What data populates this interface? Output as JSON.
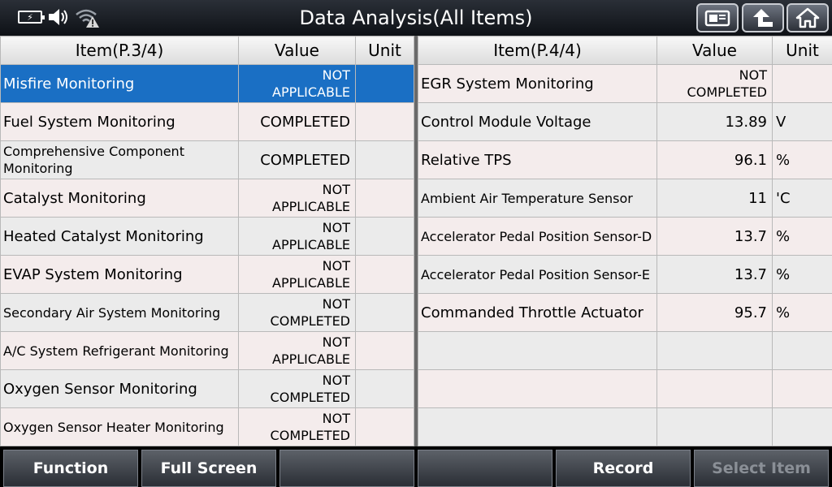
{
  "header": {
    "title": "Data Analysis(All Items)",
    "icons": [
      "battery-charging-icon",
      "volume-icon",
      "wifi-warning-icon",
      "screenshot-icon",
      "back-icon",
      "home-icon"
    ]
  },
  "left_table": {
    "headers": {
      "item": "Item(P.3/4)",
      "value": "Value",
      "unit": "Unit"
    },
    "rows": [
      {
        "item": "Misfire Monitoring",
        "value1": "NOT",
        "value2": "APPLICABLE",
        "unit": ""
      },
      {
        "item": "Fuel System Monitoring",
        "value1": "COMPLETED",
        "value2": "",
        "unit": ""
      },
      {
        "item1": "Comprehensive Component",
        "item2": "Monitoring",
        "value1": "COMPLETED",
        "value2": "",
        "unit": ""
      },
      {
        "item": "Catalyst Monitoring",
        "value1": "NOT",
        "value2": "APPLICABLE",
        "unit": ""
      },
      {
        "item": "Heated Catalyst Monitoring",
        "value1": "NOT",
        "value2": "APPLICABLE",
        "unit": ""
      },
      {
        "item": "EVAP System Monitoring",
        "value1": "NOT",
        "value2": "APPLICABLE",
        "unit": ""
      },
      {
        "item": "Secondary Air System Monitoring",
        "value1": "NOT",
        "value2": "COMPLETED",
        "unit": ""
      },
      {
        "item": "A/C System Refrigerant Monitoring",
        "value1": "NOT",
        "value2": "APPLICABLE",
        "unit": ""
      },
      {
        "item": "Oxygen Sensor Monitoring",
        "value1": "NOT",
        "value2": "COMPLETED",
        "unit": ""
      },
      {
        "item": "Oxygen Sensor Heater Monitoring",
        "value1": "NOT",
        "value2": "COMPLETED",
        "unit": ""
      }
    ]
  },
  "right_table": {
    "headers": {
      "item": "Item(P.4/4)",
      "value": "Value",
      "unit": "Unit"
    },
    "rows": [
      {
        "item": "EGR System Monitoring",
        "value1": "NOT",
        "value2": "COMPLETED",
        "unit": ""
      },
      {
        "item": "Control Module Voltage",
        "value1": "13.89",
        "value2": "",
        "unit": "V"
      },
      {
        "item": "Relative TPS",
        "value1": "96.1",
        "value2": "",
        "unit": "%"
      },
      {
        "item": "Ambient Air Temperature Sensor",
        "value1": "11",
        "value2": "",
        "unit": "'C"
      },
      {
        "item": "Accelerator Pedal Position Sensor-D",
        "value1": "13.7",
        "value2": "",
        "unit": "%"
      },
      {
        "item": "Accelerator Pedal Position Sensor-E",
        "value1": "13.7",
        "value2": "",
        "unit": "%"
      },
      {
        "item": "Commanded Throttle Actuator",
        "value1": "95.7",
        "value2": "",
        "unit": "%"
      },
      {
        "item": "",
        "value1": "",
        "value2": "",
        "unit": ""
      },
      {
        "item": "",
        "value1": "",
        "value2": "",
        "unit": ""
      },
      {
        "item": "",
        "value1": "",
        "value2": "",
        "unit": ""
      }
    ]
  },
  "bottom": {
    "function": "Function",
    "full_screen": "Full Screen",
    "empty1": "",
    "empty2": "",
    "record": "Record",
    "select_item": "Select Item"
  },
  "colors": {
    "selected_row": "#1a6fc4",
    "row_odd": "#f4ecec",
    "row_even": "#ebebeb"
  }
}
